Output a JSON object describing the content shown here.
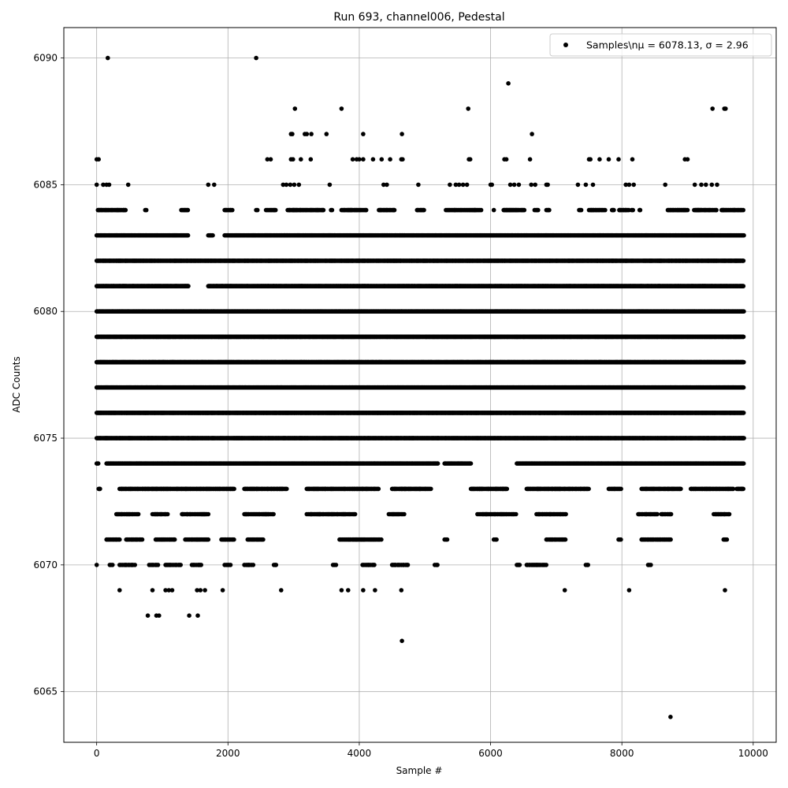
{
  "chart_data": {
    "type": "scatter",
    "title": "Run 693, channel006, Pedestal",
    "xlabel": "Sample #",
    "ylabel": "ADC Counts",
    "xlim": [
      -500,
      10350
    ],
    "ylim": [
      6063.0,
      6091.2
    ],
    "xticks": [
      0,
      2000,
      4000,
      6000,
      8000,
      10000
    ],
    "xtick_labels": [
      "0",
      "2000",
      "4000",
      "6000",
      "8000",
      "10000"
    ],
    "yticks": [
      6065,
      6070,
      6075,
      6080,
      6085,
      6090
    ],
    "ytick_labels": [
      "6065",
      "6070",
      "6075",
      "6080",
      "6085",
      "6090"
    ],
    "grid": true,
    "legend_position": "top-right",
    "marker_color": "#000000",
    "series": [
      {
        "name": "Samples\\nμ = 6078.13, σ = 2.96",
        "legend_label": "Samples\\nμ = 6078.13, σ = 2.96",
        "color": "#000000",
        "points": [
          {
            "x": 170,
            "y": 6090
          },
          {
            "x": 2430,
            "y": 6090
          },
          {
            "x": 6270,
            "y": 6089
          },
          {
            "x": 3020,
            "y": 6088
          },
          {
            "x": 3730,
            "y": 6088
          },
          {
            "x": 5660,
            "y": 6088
          },
          {
            "x": 9380,
            "y": 6088
          },
          {
            "x": 9560,
            "y": 6088
          },
          {
            "x": 9580,
            "y": 6088
          },
          {
            "x": 2960,
            "y": 6087
          },
          {
            "x": 2980,
            "y": 6087
          },
          {
            "x": 3170,
            "y": 6087
          },
          {
            "x": 3200,
            "y": 6087
          },
          {
            "x": 3270,
            "y": 6087
          },
          {
            "x": 3500,
            "y": 6087
          },
          {
            "x": 4060,
            "y": 6087
          },
          {
            "x": 4650,
            "y": 6087
          },
          {
            "x": 6630,
            "y": 6087
          },
          {
            "x": 0,
            "y": 6086
          },
          {
            "x": 30,
            "y": 6086
          },
          {
            "x": 2600,
            "y": 6086
          },
          {
            "x": 2650,
            "y": 6086
          },
          {
            "x": 2960,
            "y": 6086
          },
          {
            "x": 2990,
            "y": 6086
          },
          {
            "x": 3110,
            "y": 6086
          },
          {
            "x": 3260,
            "y": 6086
          },
          {
            "x": 3900,
            "y": 6086
          },
          {
            "x": 3960,
            "y": 6086
          },
          {
            "x": 4000,
            "y": 6086
          },
          {
            "x": 4060,
            "y": 6086
          },
          {
            "x": 4210,
            "y": 6086
          },
          {
            "x": 4340,
            "y": 6086
          },
          {
            "x": 4470,
            "y": 6086
          },
          {
            "x": 4640,
            "y": 6086
          },
          {
            "x": 4660,
            "y": 6086
          },
          {
            "x": 5670,
            "y": 6086
          },
          {
            "x": 5690,
            "y": 6086
          },
          {
            "x": 6210,
            "y": 6086
          },
          {
            "x": 6240,
            "y": 6086
          },
          {
            "x": 6600,
            "y": 6086
          },
          {
            "x": 7500,
            "y": 6086
          },
          {
            "x": 7520,
            "y": 6086
          },
          {
            "x": 7660,
            "y": 6086
          },
          {
            "x": 7800,
            "y": 6086
          },
          {
            "x": 7950,
            "y": 6086
          },
          {
            "x": 8160,
            "y": 6086
          },
          {
            "x": 8960,
            "y": 6086
          },
          {
            "x": 9000,
            "y": 6086
          },
          {
            "x": 0,
            "y": 6085
          },
          {
            "x": 100,
            "y": 6085
          },
          {
            "x": 150,
            "y": 6085
          },
          {
            "x": 190,
            "y": 6085
          },
          {
            "x": 480,
            "y": 6085
          },
          {
            "x": 1700,
            "y": 6085
          },
          {
            "x": 1790,
            "y": 6085
          },
          {
            "x": 2840,
            "y": 6085
          },
          {
            "x": 2890,
            "y": 6085
          },
          {
            "x": 2950,
            "y": 6085
          },
          {
            "x": 3010,
            "y": 6085
          },
          {
            "x": 3080,
            "y": 6085
          },
          {
            "x": 3550,
            "y": 6085
          },
          {
            "x": 4370,
            "y": 6085
          },
          {
            "x": 4420,
            "y": 6085
          },
          {
            "x": 4900,
            "y": 6085
          },
          {
            "x": 5380,
            "y": 6085
          },
          {
            "x": 5470,
            "y": 6085
          },
          {
            "x": 5520,
            "y": 6085
          },
          {
            "x": 5580,
            "y": 6085
          },
          {
            "x": 5640,
            "y": 6085
          },
          {
            "x": 6000,
            "y": 6085
          },
          {
            "x": 6020,
            "y": 6085
          },
          {
            "x": 6300,
            "y": 6085
          },
          {
            "x": 6360,
            "y": 6085
          },
          {
            "x": 6430,
            "y": 6085
          },
          {
            "x": 6620,
            "y": 6085
          },
          {
            "x": 6680,
            "y": 6085
          },
          {
            "x": 6850,
            "y": 6085
          },
          {
            "x": 6870,
            "y": 6085
          },
          {
            "x": 7330,
            "y": 6085
          },
          {
            "x": 7450,
            "y": 6085
          },
          {
            "x": 7560,
            "y": 6085
          },
          {
            "x": 8060,
            "y": 6085
          },
          {
            "x": 8110,
            "y": 6085
          },
          {
            "x": 8180,
            "y": 6085
          },
          {
            "x": 8660,
            "y": 6085
          },
          {
            "x": 9110,
            "y": 6085
          },
          {
            "x": 9210,
            "y": 6085
          },
          {
            "x": 9280,
            "y": 6085
          },
          {
            "x": 9370,
            "y": 6085
          },
          {
            "x": 9450,
            "y": 6085
          },
          {
            "x": 2810,
            "y": 6069
          },
          {
            "x": 3730,
            "y": 6069
          },
          {
            "x": 3830,
            "y": 6069
          },
          {
            "x": 4060,
            "y": 6069
          },
          {
            "x": 4240,
            "y": 6069
          },
          {
            "x": 4640,
            "y": 6069
          },
          {
            "x": 7130,
            "y": 6069
          },
          {
            "x": 8110,
            "y": 6069
          },
          {
            "x": 9570,
            "y": 6069
          },
          {
            "x": 350,
            "y": 6069
          },
          {
            "x": 850,
            "y": 6069
          },
          {
            "x": 1050,
            "y": 6069
          },
          {
            "x": 1100,
            "y": 6069
          },
          {
            "x": 1150,
            "y": 6069
          },
          {
            "x": 1530,
            "y": 6069
          },
          {
            "x": 1580,
            "y": 6069
          },
          {
            "x": 1650,
            "y": 6069
          },
          {
            "x": 1920,
            "y": 6069
          },
          {
            "x": 780,
            "y": 6068
          },
          {
            "x": 910,
            "y": 6068
          },
          {
            "x": 950,
            "y": 6068
          },
          {
            "x": 1410,
            "y": 6068
          },
          {
            "x": 1540,
            "y": 6068
          },
          {
            "x": 4650,
            "y": 6067
          },
          {
            "x": 8740,
            "y": 6064
          }
        ],
        "dense_bands": [
          {
            "y": 6084,
            "spans": [
              [
                20,
                450
              ],
              [
                740,
                760
              ],
              [
                1290,
                1400
              ],
              [
                1950,
                2070
              ],
              [
                2430,
                2450
              ],
              [
                2580,
                2740
              ],
              [
                2910,
                3460
              ],
              [
                3570,
                3590
              ],
              [
                3730,
                4120
              ],
              [
                4300,
                4540
              ],
              [
                4880,
                5000
              ],
              [
                5320,
                5860
              ],
              [
                6050,
                6060
              ],
              [
                6200,
                6530
              ],
              [
                6670,
                6730
              ],
              [
                6850,
                6900
              ],
              [
                7350,
                7390
              ],
              [
                7500,
                7760
              ],
              [
                7850,
                7880
              ],
              [
                7960,
                8110
              ],
              [
                8150,
                8170
              ],
              [
                8270,
                8290
              ],
              [
                8700,
                9000
              ],
              [
                9100,
                9450
              ],
              [
                9520,
                9860
              ]
            ],
            "density": 0.4
          },
          {
            "y": 6083,
            "spans": [
              [
                0,
                1400
              ],
              [
                1700,
                1780
              ],
              [
                1950,
                9860
              ]
            ],
            "density": 0.55
          },
          {
            "y": 6082,
            "spans": [
              [
                0,
                9860
              ]
            ],
            "density": 0.65
          },
          {
            "y": 6081,
            "spans": [
              [
                0,
                1400
              ],
              [
                1700,
                9860
              ]
            ],
            "density": 0.8
          },
          {
            "y": 6080,
            "spans": [
              [
                0,
                9860
              ]
            ],
            "density": 0.85
          },
          {
            "y": 6079,
            "spans": [
              [
                0,
                9860
              ]
            ],
            "density": 0.95
          },
          {
            "y": 6078,
            "spans": [
              [
                0,
                9860
              ]
            ],
            "density": 1.0
          },
          {
            "y": 6077,
            "spans": [
              [
                0,
                9860
              ]
            ],
            "density": 1.0
          },
          {
            "y": 6076,
            "spans": [
              [
                0,
                9860
              ]
            ],
            "density": 0.9
          },
          {
            "y": 6075,
            "spans": [
              [
                0,
                9860
              ]
            ],
            "density": 0.85
          },
          {
            "y": 6074,
            "spans": [
              [
                0,
                30
              ],
              [
                150,
                5200
              ],
              [
                5300,
                5700
              ],
              [
                6400,
                9860
              ]
            ],
            "density": 0.65
          },
          {
            "y": 6073,
            "spans": [
              [
                30,
                60
              ],
              [
                350,
                2110
              ],
              [
                2250,
                2900
              ],
              [
                3200,
                4300
              ],
              [
                4500,
                5100
              ],
              [
                5700,
                6250
              ],
              [
                6550,
                7500
              ],
              [
                7800,
                8000
              ],
              [
                8300,
                8900
              ],
              [
                9050,
                9700
              ],
              [
                9750,
                9850
              ]
            ],
            "density": 0.45
          },
          {
            "y": 6072,
            "spans": [
              [
                300,
                650
              ],
              [
                850,
                1100
              ],
              [
                1300,
                1700
              ],
              [
                2250,
                2700
              ],
              [
                3200,
                3950
              ],
              [
                4450,
                4700
              ],
              [
                5800,
                6400
              ],
              [
                6700,
                7150
              ],
              [
                8250,
                8550
              ],
              [
                8600,
                8750
              ],
              [
                9400,
                9650
              ]
            ],
            "density": 0.35
          },
          {
            "y": 6071,
            "spans": [
              [
                150,
                350
              ],
              [
                450,
                700
              ],
              [
                900,
                1200
              ],
              [
                1350,
                1700
              ],
              [
                1900,
                2100
              ],
              [
                2300,
                2550
              ],
              [
                3700,
                4350
              ],
              [
                5300,
                5350
              ],
              [
                6050,
                6100
              ],
              [
                6850,
                7150
              ],
              [
                7950,
                8000
              ],
              [
                8300,
                8750
              ],
              [
                9550,
                9600
              ]
            ],
            "density": 0.35
          },
          {
            "y": 6070,
            "spans": [
              [
                0,
                20
              ],
              [
                200,
                250
              ],
              [
                350,
                600
              ],
              [
                800,
                950
              ],
              [
                1050,
                1300
              ],
              [
                1450,
                1600
              ],
              [
                1950,
                2050
              ],
              [
                2250,
                2400
              ],
              [
                2700,
                2750
              ],
              [
                3600,
                3650
              ],
              [
                4050,
                4250
              ],
              [
                4500,
                4750
              ],
              [
                5150,
                5200
              ],
              [
                6400,
                6450
              ],
              [
                6550,
                6850
              ],
              [
                7450,
                7500
              ],
              [
                8400,
                8450
              ]
            ],
            "density": 0.3
          }
        ]
      }
    ]
  }
}
